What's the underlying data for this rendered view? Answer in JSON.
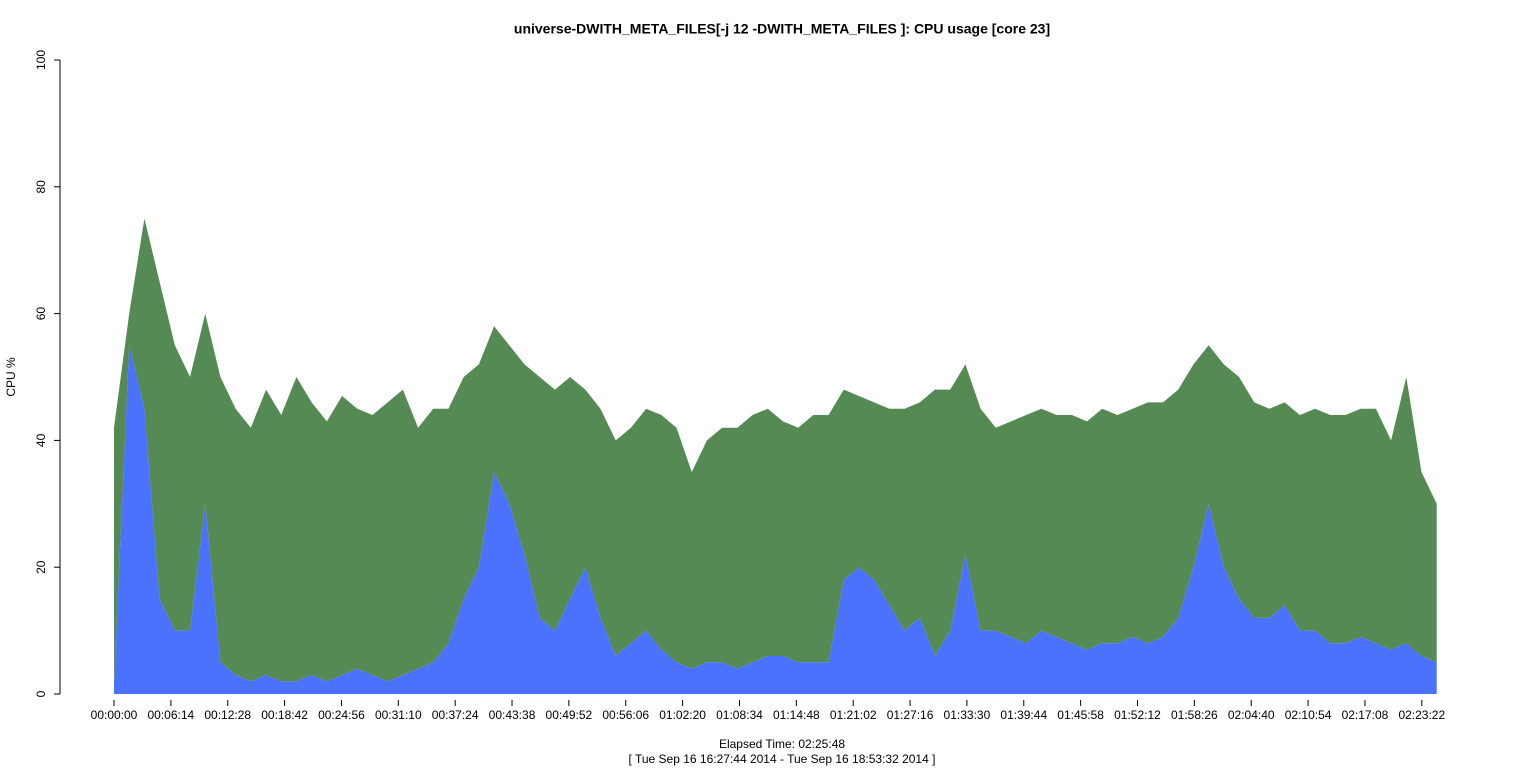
{
  "chart_data": {
    "type": "stacked_area",
    "title": "universe-DWITH_META_FILES[-j 12 -DWITH_META_FILES ]: CPU usage [core 23]",
    "x_label": "Elapsed Time: 02:25:48",
    "x_sublabel": "[ Tue Sep 16 16:27:44 2014 - Tue Sep 16 18:53:32 2014 ]",
    "y_label": "CPU %",
    "x": [
      0,
      100,
      200,
      300,
      400,
      500,
      600,
      700,
      800,
      900,
      1000,
      1100,
      1200,
      1300,
      1400,
      1500,
      1600,
      1700,
      1800,
      1900,
      2000,
      2100,
      2200,
      2300,
      2400,
      2500,
      2600,
      2700,
      2800,
      2900,
      3000,
      3100,
      3200,
      3300,
      3400,
      3500,
      3600,
      3700,
      3800,
      3900,
      4000,
      4100,
      4200,
      4300,
      4400,
      4500,
      4600,
      4700,
      4800,
      4900,
      5000,
      5100,
      5200,
      5300,
      5400,
      5500,
      5600,
      5700,
      5800,
      5900,
      6000,
      6100,
      6200,
      6300,
      6400,
      6500,
      6600,
      6700,
      6800,
      6900,
      7000,
      7100,
      7200,
      7300,
      7400,
      7500,
      7600,
      7700,
      7800,
      7900,
      8000,
      8100,
      8200,
      8300,
      8400,
      8500,
      8600,
      8700
    ],
    "series": [
      {
        "color": "#4a72ff",
        "values": [
          2,
          55,
          45,
          15,
          10,
          10,
          30,
          5,
          3,
          2,
          3,
          2,
          2,
          3,
          2,
          3,
          4,
          3,
          2,
          3,
          4,
          5,
          8,
          15,
          20,
          35,
          30,
          22,
          12,
          10,
          15,
          20,
          12,
          6,
          8,
          10,
          7,
          5,
          4,
          5,
          5,
          4,
          5,
          6,
          6,
          5,
          5,
          5,
          18,
          20,
          18,
          14,
          10,
          12,
          6,
          10,
          22,
          10,
          10,
          9,
          8,
          10,
          9,
          8,
          7,
          8,
          8,
          9,
          8,
          9,
          12,
          20,
          30,
          20,
          15,
          12,
          12,
          14,
          10,
          10,
          8,
          8,
          9,
          8,
          7,
          8,
          6,
          5
        ]
      },
      {
        "color": "#568a55",
        "values": [
          40,
          5,
          30,
          50,
          45,
          40,
          30,
          45,
          42,
          40,
          45,
          42,
          48,
          43,
          41,
          44,
          41,
          41,
          44,
          45,
          38,
          40,
          37,
          35,
          32,
          23,
          25,
          30,
          38,
          38,
          35,
          28,
          33,
          34,
          34,
          35,
          37,
          37,
          31,
          35,
          37,
          38,
          39,
          39,
          37,
          37,
          39,
          39,
          30,
          27,
          28,
          31,
          35,
          34,
          42,
          38,
          30,
          35,
          32,
          34,
          36,
          35,
          35,
          36,
          36,
          37,
          36,
          36,
          38,
          37,
          36,
          32,
          25,
          32,
          35,
          34,
          33,
          32,
          34,
          35,
          36,
          36,
          36,
          37,
          33,
          42,
          29,
          25
        ]
      }
    ],
    "xlim": [
      0,
      8748
    ],
    "xticks": [
      {
        "value": 0,
        "label": "00:00:00"
      },
      {
        "value": 374,
        "label": "00:06:14"
      },
      {
        "value": 748,
        "label": "00:12:28"
      },
      {
        "value": 1122,
        "label": "00:18:42"
      },
      {
        "value": 1496,
        "label": "00:24:56"
      },
      {
        "value": 1870,
        "label": "00:31:10"
      },
      {
        "value": 2244,
        "label": "00:37:24"
      },
      {
        "value": 2618,
        "label": "00:43:38"
      },
      {
        "value": 2992,
        "label": "00:49:52"
      },
      {
        "value": 3366,
        "label": "00:56:06"
      },
      {
        "value": 3740,
        "label": "01:02:20"
      },
      {
        "value": 4114,
        "label": "01:08:34"
      },
      {
        "value": 4488,
        "label": "01:14:48"
      },
      {
        "value": 4862,
        "label": "01:21:02"
      },
      {
        "value": 5236,
        "label": "01:27:16"
      },
      {
        "value": 5610,
        "label": "01:33:30"
      },
      {
        "value": 5984,
        "label": "01:39:44"
      },
      {
        "value": 6358,
        "label": "01:45:58"
      },
      {
        "value": 6732,
        "label": "01:52:12"
      },
      {
        "value": 7106,
        "label": "01:58:26"
      },
      {
        "value": 7480,
        "label": "02:04:40"
      },
      {
        "value": 7854,
        "label": "02:10:54"
      },
      {
        "value": 8228,
        "label": "02:17:08"
      },
      {
        "value": 8602,
        "label": "02:23:22"
      }
    ],
    "ylim": [
      0,
      100
    ],
    "yticks": [
      0,
      20,
      40,
      60,
      80,
      100
    ]
  }
}
